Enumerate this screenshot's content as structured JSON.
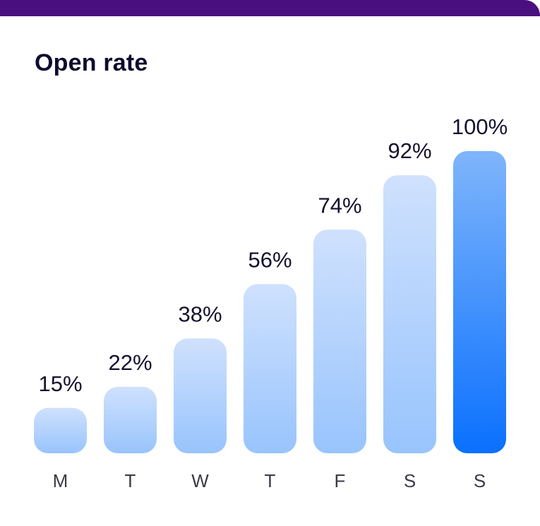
{
  "card": {
    "accent_color": "#4a0f7e"
  },
  "chart_data": {
    "type": "bar",
    "title": "Open rate",
    "categories": [
      "M",
      "T",
      "W",
      "T",
      "F",
      "S",
      "S"
    ],
    "values": [
      15,
      22,
      38,
      56,
      74,
      92,
      100
    ],
    "value_suffix": "%",
    "ylim": [
      0,
      100
    ],
    "grid": false,
    "highlight_index": 6,
    "colors": {
      "bar_light_top": "#cfe1fd",
      "bar_light_bottom": "#98c4fd",
      "bar_highlight_top": "#7fb5fb",
      "bar_highlight_bottom": "#0a70fe"
    }
  }
}
